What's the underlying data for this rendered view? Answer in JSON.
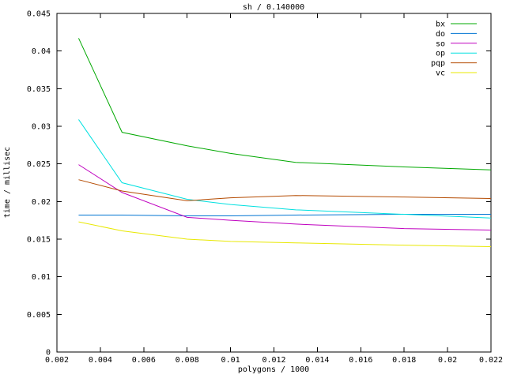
{
  "window": {
    "background": "#ffffff",
    "axis_color": "#000000",
    "text_color": "#000000"
  },
  "chart_data": {
    "type": "line",
    "title": "sh / 0.140000",
    "xlabel": "polygons / 1000",
    "ylabel": "time / millisec",
    "xlim": [
      0.002,
      0.022
    ],
    "ylim": [
      0,
      0.045
    ],
    "grid": false,
    "legend_position": "top-right-inside",
    "x_tick_values": [
      0.002,
      0.004,
      0.006,
      0.008,
      0.01,
      0.012,
      0.014,
      0.016,
      0.018,
      0.02,
      0.022
    ],
    "x_tick_labels": [
      "0.002",
      "0.004",
      "0.006",
      "0.008",
      "0.01",
      "0.012",
      "0.014",
      "0.016",
      "0.018",
      "0.02",
      "0.022"
    ],
    "y_tick_values": [
      0,
      0.005,
      0.01,
      0.015,
      0.02,
      0.025,
      0.03,
      0.035,
      0.04,
      0.045
    ],
    "y_tick_labels": [
      "0",
      "0.005",
      "0.01",
      "0.015",
      "0.02",
      "0.025",
      "0.03",
      "0.035",
      "0.04",
      "0.045"
    ],
    "x": [
      0.003,
      0.005,
      0.008,
      0.01,
      0.013,
      0.018,
      0.022
    ],
    "series": [
      {
        "name": "bx",
        "color": "#00a800",
        "values": [
          0.0417,
          0.0292,
          0.0274,
          0.0264,
          0.0252,
          0.0246,
          0.0242
        ]
      },
      {
        "name": "do",
        "color": "#0074d2",
        "values": [
          0.0182,
          0.0182,
          0.0181,
          0.0181,
          0.0182,
          0.0183,
          0.0183
        ]
      },
      {
        "name": "so",
        "color": "#bf00bf",
        "values": [
          0.0249,
          0.0212,
          0.0179,
          0.0175,
          0.017,
          0.0164,
          0.0162
        ]
      },
      {
        "name": "op",
        "color": "#00e0e0",
        "values": [
          0.0309,
          0.0225,
          0.0203,
          0.0196,
          0.0189,
          0.0183,
          0.0178
        ]
      },
      {
        "name": "pqp",
        "color": "#b44a00",
        "values": [
          0.0229,
          0.0214,
          0.0201,
          0.0205,
          0.0208,
          0.0206,
          0.0204
        ]
      },
      {
        "name": "vc",
        "color": "#e8e800",
        "values": [
          0.0173,
          0.0161,
          0.015,
          0.0147,
          0.0145,
          0.0142,
          0.014
        ]
      }
    ]
  }
}
